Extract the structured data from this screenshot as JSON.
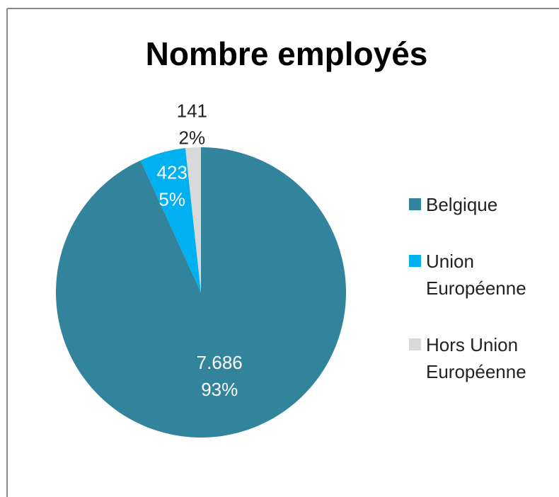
{
  "chart_data": {
    "type": "pie",
    "title": "Nombre employés",
    "categories": [
      "Belgique",
      "Union Européenne",
      "Hors Union Européenne"
    ],
    "values": [
      7686,
      423,
      141
    ],
    "value_labels": [
      "7.686",
      "423",
      "141"
    ],
    "percent_labels": [
      "93%",
      "5%",
      "2%"
    ],
    "colors": [
      "#31849b",
      "#00b0f0",
      "#d9d9d9"
    ],
    "legend": "right"
  }
}
